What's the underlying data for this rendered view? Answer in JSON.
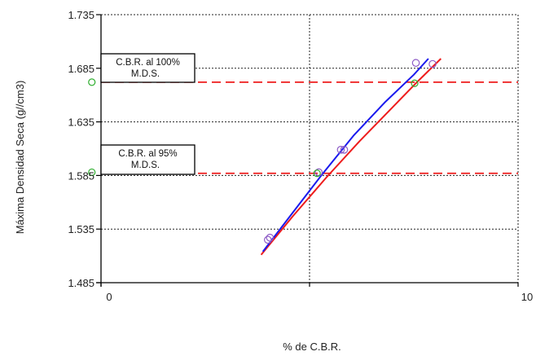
{
  "chart_data": {
    "type": "scatter",
    "title": "",
    "xlabel": "% de C.B.R.",
    "ylabel": "Máxima Densidad Seca (g//cm3)",
    "xlim": [
      0,
      10
    ],
    "ylim": [
      1.485,
      1.735
    ],
    "x_ticks": [
      0,
      5,
      10
    ],
    "x_tick_labels": [
      "0",
      "",
      "10"
    ],
    "y_ticks": [
      1.485,
      1.535,
      1.585,
      1.635,
      1.685,
      1.735
    ],
    "y_tick_labels": [
      "1.485",
      "1.535",
      "1.585",
      "1.635",
      "1.685",
      "1.735"
    ],
    "grid": true,
    "grid_style": "dotted",
    "colors": {
      "red": "#ee1c1c",
      "blue": "#1a1aee",
      "green_marker": "#2fae2f",
      "purple_marker": "#8e5cc6",
      "grid": "#222222"
    },
    "series": [
      {
        "color": "#ee1c1c",
        "kind": "points+curve",
        "points": [
          {
            "x": 4.0,
            "y": 1.525
          },
          {
            "x": 5.22,
            "y": 1.588
          },
          {
            "x": 5.75,
            "y": 1.609
          },
          {
            "x": 7.55,
            "y": 1.69
          }
        ],
        "curve": [
          {
            "x": 3.84,
            "y": 1.511
          },
          {
            "x": 4.6,
            "y": 1.547
          },
          {
            "x": 5.4,
            "y": 1.583
          },
          {
            "x": 6.2,
            "y": 1.617
          },
          {
            "x": 7.0,
            "y": 1.649
          },
          {
            "x": 7.6,
            "y": 1.673
          },
          {
            "x": 8.15,
            "y": 1.694
          }
        ]
      },
      {
        "color": "#1a1aee",
        "kind": "points+curve",
        "points": [
          {
            "x": 4.05,
            "y": 1.527
          },
          {
            "x": 5.83,
            "y": 1.609
          },
          {
            "x": 7.95,
            "y": 1.689
          }
        ],
        "curve": [
          {
            "x": 3.88,
            "y": 1.514
          },
          {
            "x": 4.55,
            "y": 1.548
          },
          {
            "x": 5.3,
            "y": 1.586
          },
          {
            "x": 6.05,
            "y": 1.622
          },
          {
            "x": 6.8,
            "y": 1.653
          },
          {
            "x": 7.5,
            "y": 1.679
          },
          {
            "x": 7.85,
            "y": 1.694
          }
        ]
      }
    ],
    "reference_lines": [
      {
        "y": 1.672,
        "color": "#ee1c1c",
        "style": "dashed"
      },
      {
        "y": 1.587,
        "color": "#ee1c1c",
        "style": "dashed"
      }
    ],
    "reference_markers": [
      {
        "x": -0.22,
        "y": 1.672,
        "color": "#2fae2f"
      },
      {
        "x": -0.22,
        "y": 1.588,
        "color": "#2fae2f"
      },
      {
        "x": 7.52,
        "y": 1.671,
        "color": "#2fae2f"
      },
      {
        "x": 5.18,
        "y": 1.587,
        "color": "#2fae2f"
      }
    ],
    "annotations": [
      {
        "lines": [
          "C.B.R. al 100%",
          "M.D.S."
        ]
      },
      {
        "lines": [
          "C.B.R. al  95%",
          "M.D.S."
        ]
      }
    ]
  }
}
